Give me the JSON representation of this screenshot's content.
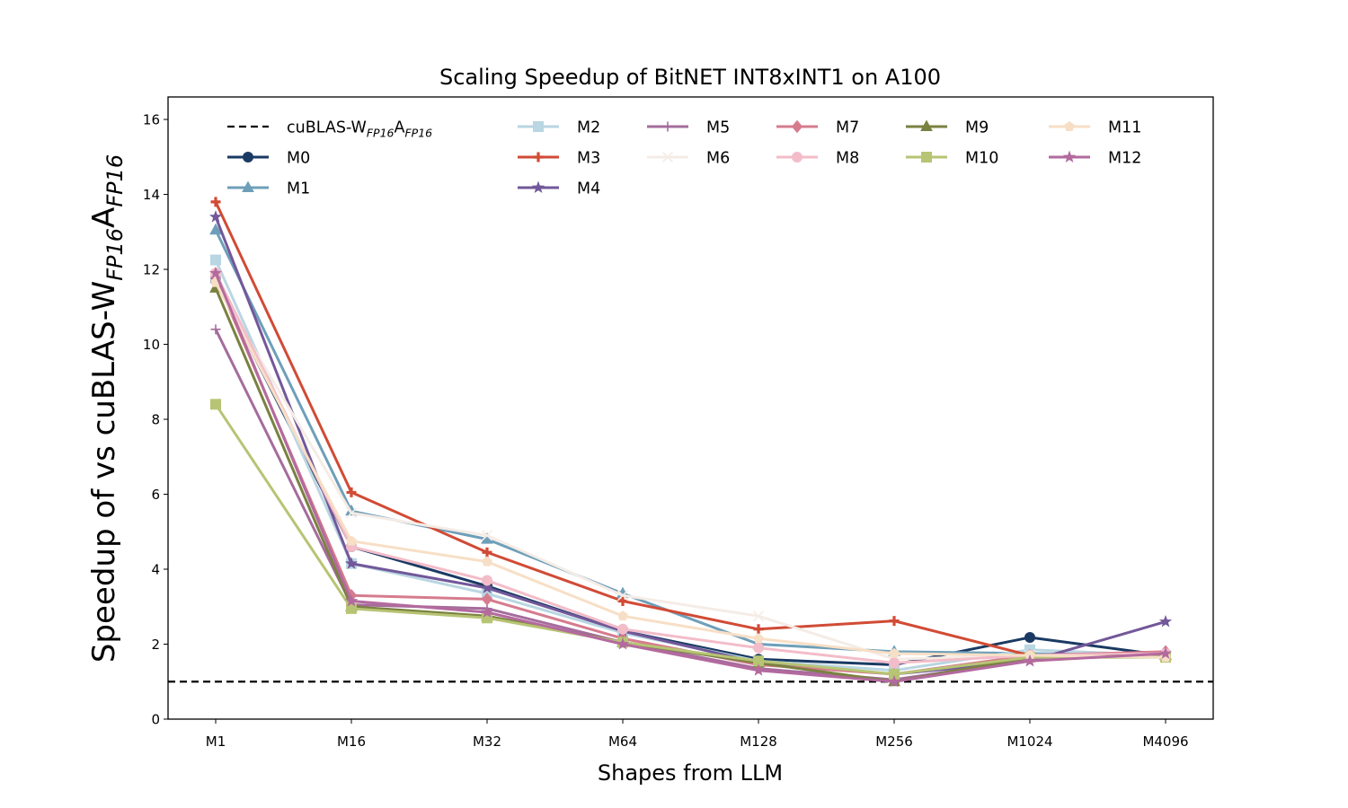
{
  "chart_data": {
    "type": "line",
    "title": "Scaling Speedup of BitNET INT8xINT1 on A100",
    "xlabel": "Shapes from LLM",
    "ylabel": {
      "prefix": "Speedup of vs cuBLAS-W",
      "sub1": "FP16",
      "mid": "A",
      "sub2": "FP16"
    },
    "categories": [
      "M1",
      "M16",
      "M32",
      "M64",
      "M128",
      "M256",
      "M1024",
      "M4096"
    ],
    "ylim": [
      0,
      16.6
    ],
    "yticks": [
      0,
      2,
      4,
      6,
      8,
      10,
      12,
      14,
      16
    ],
    "grid": false,
    "legend_placement": "upper, 6 columns",
    "baseline": {
      "name": {
        "prefix": "cuBLAS-W",
        "sub1": "FP16",
        "mid": "A",
        "sub2": "FP16"
      },
      "value": 1.0,
      "color": "#000000"
    },
    "series": [
      {
        "name": "M0",
        "color": "#1a3a63",
        "marker": "circle",
        "values": [
          11.7,
          4.6,
          3.55,
          2.35,
          1.6,
          1.45,
          2.18,
          1.7
        ]
      },
      {
        "name": "M1",
        "color": "#6e9fb9",
        "marker": "triangle",
        "values": [
          13.05,
          5.55,
          4.8,
          3.35,
          2.0,
          1.8,
          1.75,
          1.7
        ]
      },
      {
        "name": "M2",
        "color": "#b9d6e2",
        "marker": "square",
        "values": [
          12.25,
          4.15,
          3.35,
          2.3,
          1.55,
          1.3,
          1.85,
          1.7
        ]
      },
      {
        "name": "M3",
        "color": "#d14b35",
        "marker": "plus",
        "values": [
          13.8,
          6.05,
          4.45,
          3.15,
          2.4,
          2.62,
          1.7,
          1.7
        ]
      },
      {
        "name": "M4",
        "color": "#72589a",
        "marker": "star",
        "values": [
          13.4,
          4.15,
          3.5,
          2.35,
          1.5,
          1.2,
          1.55,
          2.6
        ]
      },
      {
        "name": "M5",
        "color": "#a56c9c",
        "marker": "thin-plus",
        "values": [
          10.4,
          3.05,
          2.95,
          2.05,
          1.35,
          1.05,
          1.6,
          1.7
        ]
      },
      {
        "name": "M6",
        "color": "#f5ece6",
        "marker": "x",
        "values": [
          11.6,
          5.5,
          4.9,
          3.3,
          2.75,
          1.6,
          1.7,
          1.7
        ]
      },
      {
        "name": "M7",
        "color": "#d67b8e",
        "marker": "diamond",
        "values": [
          11.8,
          3.3,
          3.2,
          2.15,
          1.45,
          1.2,
          1.7,
          1.8
        ]
      },
      {
        "name": "M8",
        "color": "#f3bcc9",
        "marker": "circle",
        "values": [
          11.9,
          4.6,
          3.7,
          2.4,
          1.9,
          1.5,
          1.7,
          1.75
        ]
      },
      {
        "name": "M9",
        "color": "#7a8140",
        "marker": "triangle",
        "values": [
          11.5,
          3.0,
          2.75,
          2.05,
          1.5,
          1.0,
          1.65,
          1.7
        ]
      },
      {
        "name": "M10",
        "color": "#b7c474",
        "marker": "square",
        "values": [
          8.4,
          2.95,
          2.7,
          2.05,
          1.55,
          1.2,
          1.65,
          1.65
        ]
      },
      {
        "name": "M11",
        "color": "#f7dfc6",
        "marker": "pentagon",
        "values": [
          11.65,
          4.75,
          4.2,
          2.75,
          2.15,
          1.75,
          1.7,
          1.65
        ]
      },
      {
        "name": "M12",
        "color": "#b36a9e",
        "marker": "star",
        "values": [
          11.9,
          3.15,
          2.85,
          2.0,
          1.3,
          1.0,
          1.55,
          1.75
        ]
      }
    ]
  }
}
